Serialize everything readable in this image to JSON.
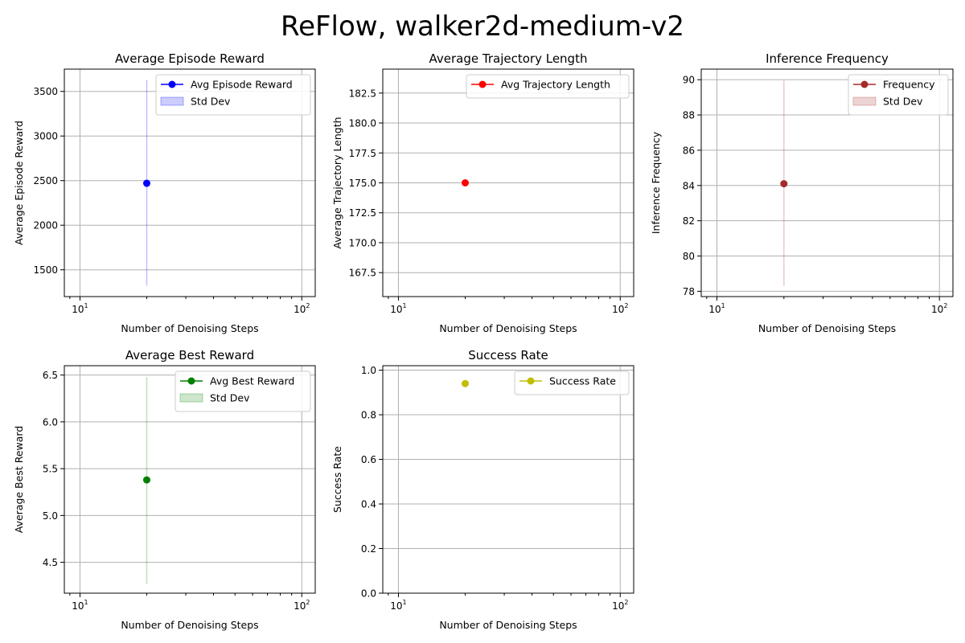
{
  "figure_title": "ReFlow, walker2d-medium-v2",
  "chart_data": [
    {
      "type": "scatter",
      "title": "Average Episode Reward",
      "xlabel": "Number of Denoising Steps",
      "ylabel": "Average Episode Reward",
      "xscale": "log",
      "xlim": [
        8.5,
        115
      ],
      "ylim": [
        1200,
        3750
      ],
      "yticks": [
        1500,
        2000,
        2500,
        3000,
        3500
      ],
      "yticklabels": [
        "1500",
        "2000",
        "2500",
        "3000",
        "3500"
      ],
      "grid": true,
      "legend_position": "upper right",
      "series": [
        {
          "name": "Avg Episode Reward",
          "color": "#0000ff",
          "x": [
            20
          ],
          "y": [
            2470
          ],
          "std_low": [
            1320
          ],
          "std_high": [
            3630
          ],
          "std_name": "Std Dev",
          "std_color": "#0000ff"
        }
      ]
    },
    {
      "type": "scatter",
      "title": "Average Trajectory Length",
      "xlabel": "Number of Denoising Steps",
      "ylabel": "Average Trajectory Length",
      "xscale": "log",
      "xlim": [
        8.5,
        115
      ],
      "ylim": [
        165.5,
        184.5
      ],
      "yticks": [
        167.5,
        170.0,
        172.5,
        175.0,
        177.5,
        180.0,
        182.5
      ],
      "yticklabels": [
        "167.5",
        "170.0",
        "172.5",
        "175.0",
        "177.5",
        "180.0",
        "182.5"
      ],
      "grid": true,
      "legend_position": "upper right",
      "series": [
        {
          "name": "Avg Trajectory Length",
          "color": "#ff0000",
          "x": [
            20
          ],
          "y": [
            175.0
          ]
        }
      ]
    },
    {
      "type": "scatter",
      "title": "Inference Frequency",
      "xlabel": "Number of Denoising Steps",
      "ylabel": "Inference Frequency",
      "xscale": "log",
      "xlim": [
        8.5,
        115
      ],
      "ylim": [
        77.7,
        90.6
      ],
      "yticks": [
        78,
        80,
        82,
        84,
        86,
        88,
        90
      ],
      "yticklabels": [
        "78",
        "80",
        "82",
        "84",
        "86",
        "88",
        "90"
      ],
      "grid": true,
      "legend_position": "upper right",
      "series": [
        {
          "name": "Frequency",
          "color": "#a52a2a",
          "x": [
            20
          ],
          "y": [
            84.1
          ],
          "std_low": [
            78.3
          ],
          "std_high": [
            89.95
          ],
          "std_name": "Std Dev",
          "std_color": "#a52a2a"
        }
      ]
    },
    {
      "type": "scatter",
      "title": "Average Best Reward",
      "xlabel": "Number of Denoising Steps",
      "ylabel": "Average Best Reward",
      "xscale": "log",
      "xlim": [
        8.5,
        115
      ],
      "ylim": [
        4.17,
        6.6
      ],
      "yticks": [
        4.5,
        5.0,
        5.5,
        6.0,
        6.5
      ],
      "yticklabels": [
        "4.5",
        "5.0",
        "5.5",
        "6.0",
        "6.5"
      ],
      "grid": true,
      "legend_position": "upper right",
      "series": [
        {
          "name": "Avg Best Reward",
          "color": "#008000",
          "x": [
            20
          ],
          "y": [
            5.38
          ],
          "std_low": [
            4.27
          ],
          "std_high": [
            6.48
          ],
          "std_name": "Std Dev",
          "std_color": "#008000"
        }
      ]
    },
    {
      "type": "scatter",
      "title": "Success Rate",
      "xlabel": "Number of Denoising Steps",
      "ylabel": "Success Rate",
      "xscale": "log",
      "xlim": [
        8.5,
        115
      ],
      "ylim": [
        0.0,
        1.02
      ],
      "yticks": [
        0.0,
        0.2,
        0.4,
        0.6,
        0.8,
        1.0
      ],
      "yticklabels": [
        "0.0",
        "0.2",
        "0.4",
        "0.6",
        "0.8",
        "1.0"
      ],
      "grid": true,
      "legend_position": "upper right",
      "series": [
        {
          "name": "Success Rate",
          "color": "#bfbf00",
          "x": [
            20
          ],
          "y": [
            0.94
          ]
        }
      ]
    }
  ]
}
